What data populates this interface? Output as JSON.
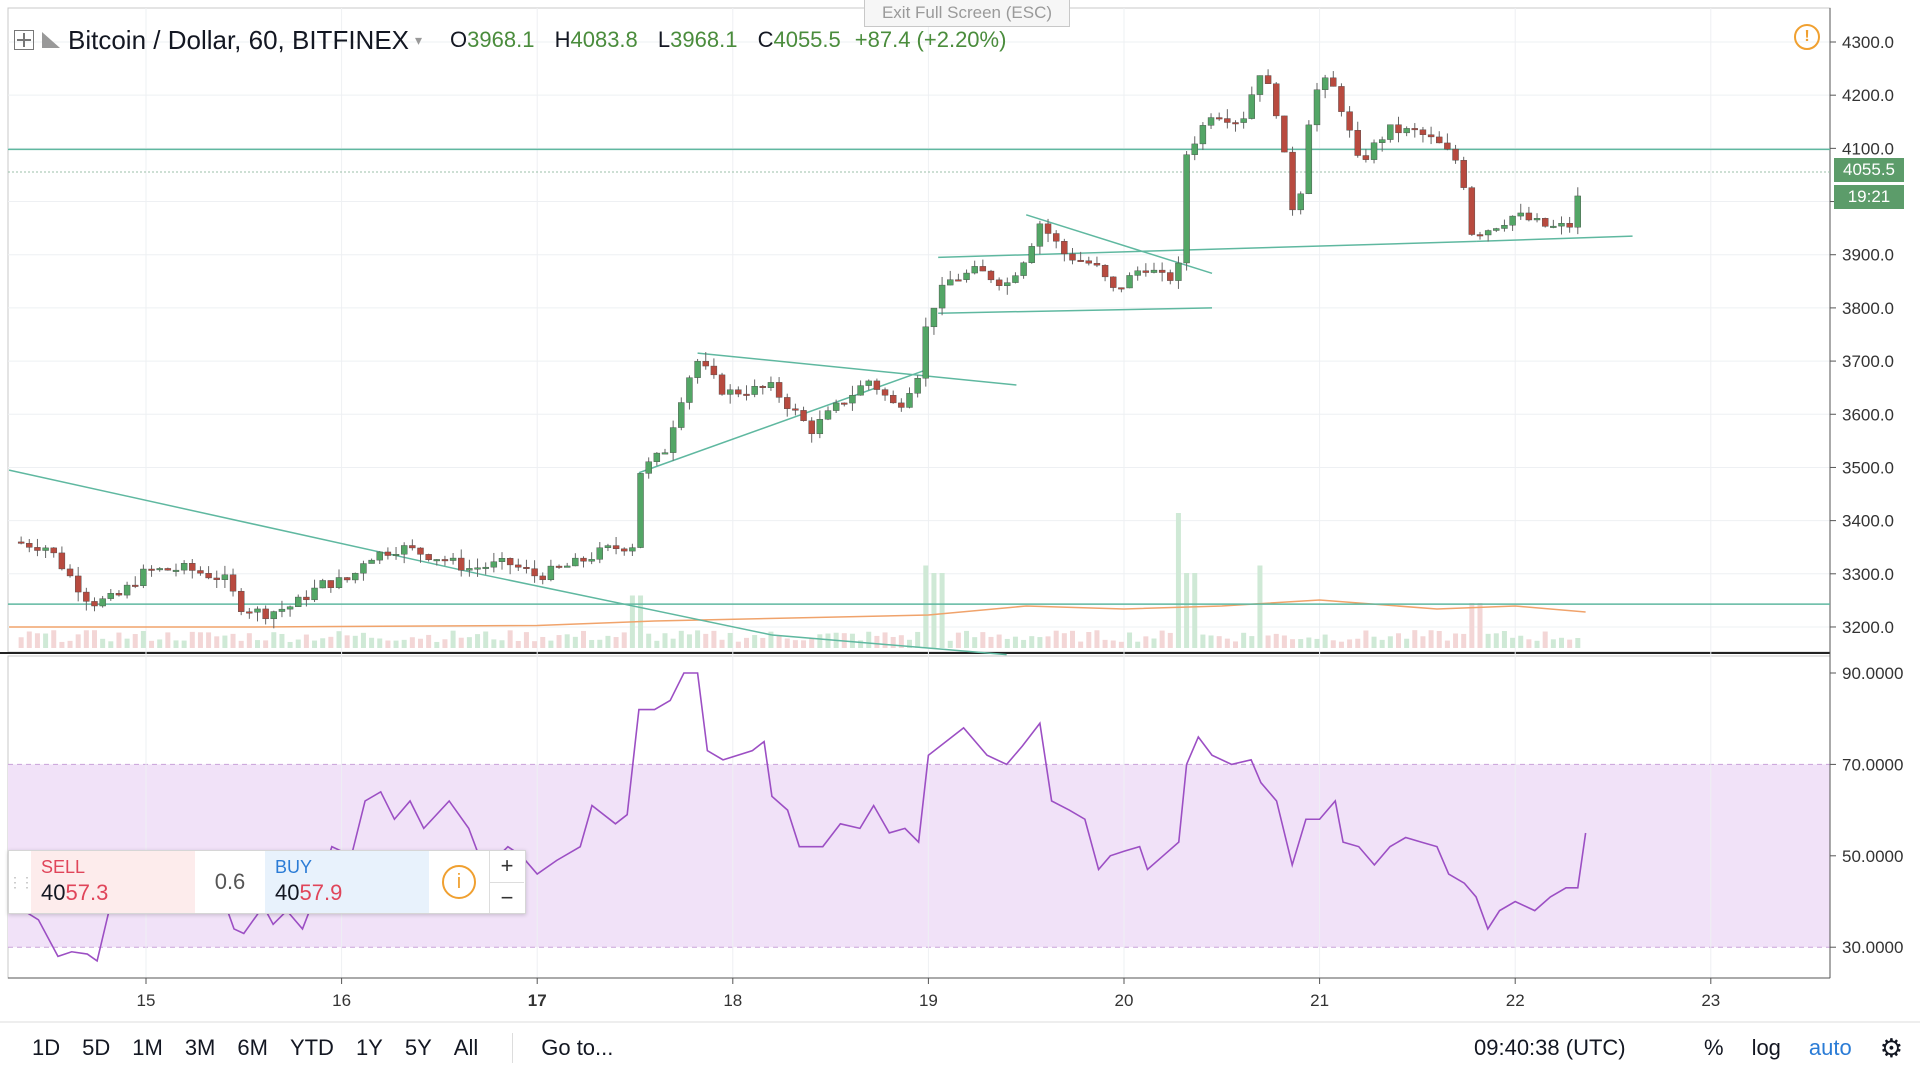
{
  "header": {
    "symbol": "Bitcoin / Dollar, 60, BITFINEX",
    "open_label": "O",
    "open": "3968.1",
    "high_label": "H",
    "high": "4083.8",
    "low_label": "L",
    "low": "3968.1",
    "close_label": "C",
    "close": "4055.5",
    "change": "+87.4 (+2.20%)"
  },
  "exit_fullscreen": "Exit Full Screen (ESC)",
  "price_tags": {
    "last": "4055.5",
    "countdown": "19:21"
  },
  "trade_panel": {
    "sell_label": "SELL",
    "sell_price_main": "40",
    "sell_price_hi": "57.3",
    "spread": "0.6",
    "buy_label": "BUY",
    "buy_price_main": "40",
    "buy_price_hi": "57.9",
    "plus": "+",
    "minus": "−"
  },
  "bottom_bar": {
    "ranges": [
      "1D",
      "5D",
      "1M",
      "3M",
      "6M",
      "YTD",
      "1Y",
      "5Y",
      "All"
    ],
    "goto": "Go to...",
    "time": "09:40:38 (UTC)",
    "percent": "%",
    "log": "log",
    "auto": "auto"
  },
  "colors": {
    "up": "#53a666",
    "down": "#b84a3f",
    "rsi": "#9c4fc4",
    "rsi_band": "#f1e2f8",
    "trendline": "#5fb8a0"
  },
  "chart_data": {
    "type": "candlestick",
    "title": "Bitcoin / Dollar, 60, BITFINEX",
    "x_ticks": [
      "15",
      "16",
      "17",
      "18",
      "19",
      "20",
      "21",
      "22",
      "23"
    ],
    "y_ticks": [
      "4300.0",
      "4200.0",
      "4100.0",
      "4000.0",
      "3900.0",
      "3800.0",
      "3700.0",
      "3600.0",
      "3500.0",
      "3400.0",
      "3300.0",
      "3200.0"
    ],
    "ylim": [
      3170,
      4345
    ],
    "x_range_days": [
      14.3,
      23.6
    ],
    "anchors": [
      [
        14.32,
        3360
      ],
      [
        14.5,
        3350
      ],
      [
        14.6,
        3300
      ],
      [
        14.72,
        3245
      ],
      [
        14.85,
        3255
      ],
      [
        15.0,
        3305
      ],
      [
        15.2,
        3310
      ],
      [
        15.4,
        3290
      ],
      [
        15.48,
        3240
      ],
      [
        15.6,
        3225
      ],
      [
        15.75,
        3240
      ],
      [
        15.9,
        3280
      ],
      [
        16.05,
        3290
      ],
      [
        16.12,
        3330
      ],
      [
        16.3,
        3350
      ],
      [
        16.5,
        3330
      ],
      [
        16.65,
        3310
      ],
      [
        16.85,
        3320
      ],
      [
        17.0,
        3295
      ],
      [
        17.2,
        3320
      ],
      [
        17.35,
        3345
      ],
      [
        17.49,
        3355
      ],
      [
        17.52,
        3490
      ],
      [
        17.65,
        3530
      ],
      [
        17.76,
        3660
      ],
      [
        17.82,
        3700
      ],
      [
        17.96,
        3640
      ],
      [
        18.2,
        3650
      ],
      [
        18.4,
        3570
      ],
      [
        18.58,
        3630
      ],
      [
        18.7,
        3665
      ],
      [
        18.84,
        3610
      ],
      [
        18.95,
        3680
      ],
      [
        19.0,
        3790
      ],
      [
        19.1,
        3850
      ],
      [
        19.25,
        3870
      ],
      [
        19.4,
        3845
      ],
      [
        19.5,
        3900
      ],
      [
        19.57,
        3960
      ],
      [
        19.7,
        3900
      ],
      [
        19.85,
        3880
      ],
      [
        19.95,
        3830
      ],
      [
        20.1,
        3880
      ],
      [
        20.22,
        3850
      ],
      [
        20.3,
        3885
      ],
      [
        20.32,
        4090
      ],
      [
        20.45,
        4170
      ],
      [
        20.6,
        4150
      ],
      [
        20.7,
        4250
      ],
      [
        20.78,
        4170
      ],
      [
        20.88,
        3950
      ],
      [
        20.96,
        4200
      ],
      [
        21.05,
        4230
      ],
      [
        21.12,
        4170
      ],
      [
        21.2,
        4070
      ],
      [
        21.35,
        4135
      ],
      [
        21.5,
        4130
      ],
      [
        21.6,
        4110
      ],
      [
        21.72,
        4070
      ],
      [
        21.78,
        3940
      ],
      [
        21.87,
        3950
      ],
      [
        22.0,
        3975
      ],
      [
        22.18,
        3950
      ],
      [
        22.28,
        3955
      ],
      [
        22.36,
        4055
      ]
    ],
    "volume_peaks": [
      [
        17.5,
        0.35
      ],
      [
        19.0,
        0.55
      ],
      [
        19.05,
        0.5
      ],
      [
        20.3,
        0.9
      ],
      [
        20.35,
        0.5
      ],
      [
        20.7,
        0.55
      ],
      [
        21.8,
        0.3
      ],
      [
        22.36,
        0.2
      ]
    ],
    "volume_ma": [
      [
        14.3,
        0.14
      ],
      [
        15.5,
        0.14
      ],
      [
        17.0,
        0.15
      ],
      [
        17.6,
        0.18
      ],
      [
        18.3,
        0.2
      ],
      [
        19.0,
        0.22
      ],
      [
        19.5,
        0.28
      ],
      [
        20.0,
        0.26
      ],
      [
        20.5,
        0.28
      ],
      [
        21.0,
        0.32
      ],
      [
        21.6,
        0.26
      ],
      [
        22.0,
        0.28
      ],
      [
        22.36,
        0.24
      ]
    ],
    "trendlines": [
      [
        [
          14.3,
          3495
        ],
        [
          16.7,
          3300
        ]
      ],
      [
        [
          16.7,
          3300
        ],
        [
          18.2,
          3185
        ]
      ],
      [
        [
          18.2,
          3185
        ],
        [
          19.4,
          3148
        ]
      ],
      [
        [
          17.82,
          3715
        ],
        [
          19.45,
          3655
        ]
      ],
      [
        [
          17.52,
          3490
        ],
        [
          19.0,
          3685
        ]
      ],
      [
        [
          19.5,
          3975
        ],
        [
          20.45,
          3865
        ]
      ],
      [
        [
          19.05,
          3895
        ],
        [
          21.8,
          3925
        ]
      ],
      [
        [
          21.8,
          3925
        ],
        [
          22.6,
          3935
        ]
      ],
      [
        [
          19.05,
          3790
        ],
        [
          20.45,
          3800
        ]
      ]
    ],
    "horizontal_lines": [
      4098,
      3243
    ],
    "rsi": {
      "y_ticks": [
        "90.0000",
        "70.0000",
        "50.0000",
        "30.0000"
      ],
      "ylim": [
        25,
        92
      ],
      "band": [
        30,
        70
      ],
      "points": [
        [
          14.3,
          40
        ],
        [
          14.45,
          36
        ],
        [
          14.55,
          28
        ],
        [
          14.62,
          29
        ],
        [
          14.7,
          28.5
        ],
        [
          14.75,
          27
        ],
        [
          14.85,
          45
        ],
        [
          15.0,
          42
        ],
        [
          15.2,
          48
        ],
        [
          15.35,
          46
        ],
        [
          15.45,
          34
        ],
        [
          15.5,
          33
        ],
        [
          15.6,
          39
        ],
        [
          15.65,
          35
        ],
        [
          15.72,
          38
        ],
        [
          15.8,
          34
        ],
        [
          15.9,
          45
        ],
        [
          15.95,
          52
        ],
        [
          16.05,
          50
        ],
        [
          16.12,
          62
        ],
        [
          16.2,
          64
        ],
        [
          16.27,
          58
        ],
        [
          16.35,
          62
        ],
        [
          16.42,
          56
        ],
        [
          16.55,
          62
        ],
        [
          16.65,
          56
        ],
        [
          16.72,
          48
        ],
        [
          16.78,
          49
        ],
        [
          16.85,
          52
        ],
        [
          16.92,
          50
        ],
        [
          17.0,
          46
        ],
        [
          17.1,
          49
        ],
        [
          17.22,
          52
        ],
        [
          17.28,
          61
        ],
        [
          17.4,
          57
        ],
        [
          17.46,
          59
        ],
        [
          17.52,
          82
        ],
        [
          17.6,
          82
        ],
        [
          17.68,
          84
        ],
        [
          17.75,
          90
        ],
        [
          17.82,
          90
        ],
        [
          17.87,
          73
        ],
        [
          17.95,
          71
        ],
        [
          18.1,
          73
        ],
        [
          18.16,
          75
        ],
        [
          18.2,
          63
        ],
        [
          18.28,
          60
        ],
        [
          18.34,
          52
        ],
        [
          18.46,
          52
        ],
        [
          18.55,
          57
        ],
        [
          18.65,
          56
        ],
        [
          18.72,
          61
        ],
        [
          18.8,
          55
        ],
        [
          18.88,
          56
        ],
        [
          18.95,
          53
        ],
        [
          19.0,
          72
        ],
        [
          19.12,
          76
        ],
        [
          19.18,
          78
        ],
        [
          19.3,
          72
        ],
        [
          19.4,
          70
        ],
        [
          19.48,
          74
        ],
        [
          19.57,
          79
        ],
        [
          19.63,
          62
        ],
        [
          19.72,
          60
        ],
        [
          19.8,
          58
        ],
        [
          19.87,
          47
        ],
        [
          19.93,
          50
        ],
        [
          20.0,
          51
        ],
        [
          20.08,
          52
        ],
        [
          20.12,
          47
        ],
        [
          20.2,
          50
        ],
        [
          20.28,
          53
        ],
        [
          20.32,
          70
        ],
        [
          20.38,
          76
        ],
        [
          20.45,
          72
        ],
        [
          20.55,
          70
        ],
        [
          20.65,
          71
        ],
        [
          20.7,
          66
        ],
        [
          20.78,
          62
        ],
        [
          20.86,
          48
        ],
        [
          20.93,
          58
        ],
        [
          21.0,
          58
        ],
        [
          21.08,
          62
        ],
        [
          21.12,
          53
        ],
        [
          21.2,
          52
        ],
        [
          21.28,
          48
        ],
        [
          21.36,
          52
        ],
        [
          21.44,
          54
        ],
        [
          21.52,
          53
        ],
        [
          21.6,
          52
        ],
        [
          21.66,
          46
        ],
        [
          21.74,
          44
        ],
        [
          21.8,
          41
        ],
        [
          21.86,
          34
        ],
        [
          21.92,
          38
        ],
        [
          22.0,
          40
        ],
        [
          22.1,
          38
        ],
        [
          22.18,
          41
        ],
        [
          22.26,
          43
        ],
        [
          22.32,
          43
        ],
        [
          22.36,
          55
        ]
      ]
    }
  }
}
